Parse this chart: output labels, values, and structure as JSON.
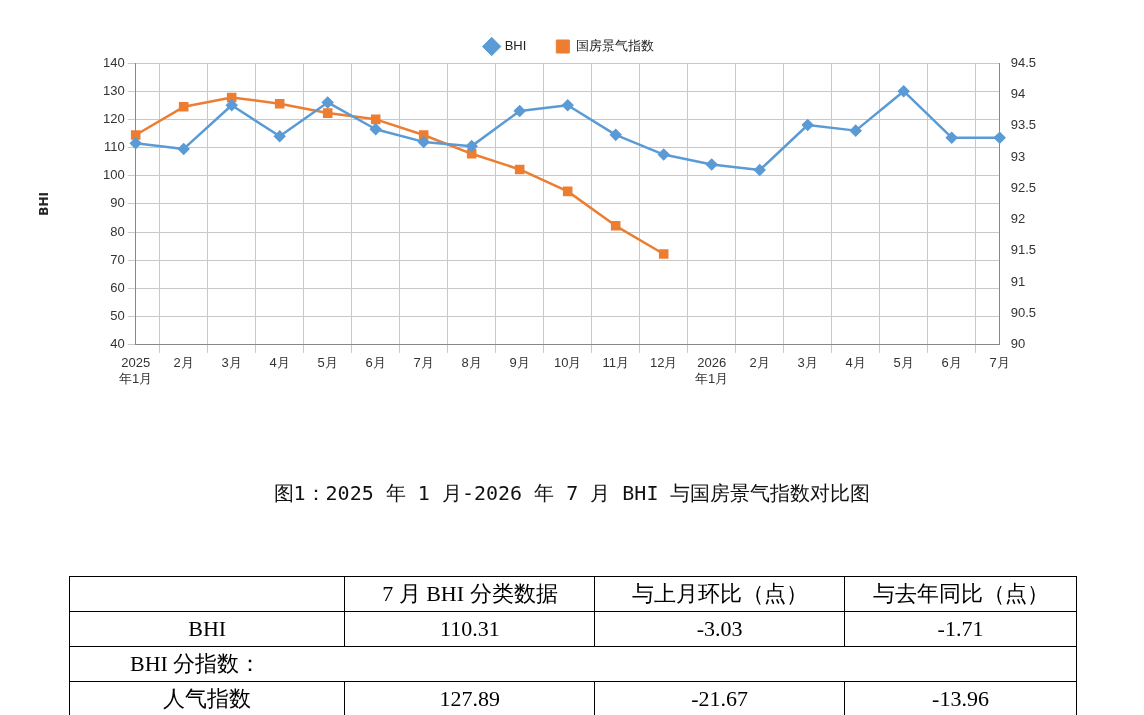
{
  "chart_data": [
    {
      "type": "line",
      "title": "图1：2025 年 1 月-2026 年 7 月 BHI 与国房景气指数对比图",
      "ylabel": "BHI",
      "categories": [
        "2025\n年1月",
        "2月",
        "3月",
        "4月",
        "5月",
        "6月",
        "7月",
        "8月",
        "9月",
        "10月",
        "11月",
        "12月",
        "2026\n年1月",
        "2月",
        "3月",
        "4月",
        "5月",
        "6月",
        "7月"
      ],
      "series": [
        {
          "name": "BHI",
          "color": "#5b9bd5",
          "marker": "diamond",
          "values": [
            111.5,
            109.5,
            125,
            114,
            126,
            116.5,
            112,
            110.5,
            123,
            125,
            114.5,
            107.5,
            104,
            102,
            118,
            116,
            130,
            113.5,
            113.5
          ]
        },
        {
          "name": "国房景气指数",
          "color": "#ed7d31",
          "marker": "square",
          "axis": "y2",
          "values": [
            93.35,
            93.8,
            93.95,
            93.85,
            93.7,
            93.6,
            93.35,
            93.05,
            92.8,
            92.45,
            91.9,
            91.45,
            null,
            null,
            null,
            null,
            null,
            null,
            null
          ]
        }
      ],
      "ylim": [
        40,
        140
      ],
      "yticks": [
        40,
        50,
        60,
        70,
        80,
        90,
        100,
        110,
        120,
        130,
        140
      ],
      "y2lim": [
        90,
        94.5
      ],
      "y2ticks": [
        90,
        90.5,
        91,
        91.5,
        92,
        92.5,
        93,
        93.5,
        94,
        94.5
      ],
      "grid": true,
      "legend": "top",
      "line_style": "solid"
    },
    {
      "type": "other",
      "categories": [
        null,
        "7 月 BHI 分类数据",
        "与上月环比（点）",
        "与去年同比（点）"
      ],
      "y_categories": [
        "BHI",
        "BHI 分指数：",
        "人气指数"
      ],
      "cell_labels": [
        [
          "110.31",
          "-3.03",
          "-1.71"
        ],
        [
          null,
          null,
          null
        ],
        [
          "127.89",
          "-21.67",
          "-13.96"
        ]
      ]
    }
  ]
}
